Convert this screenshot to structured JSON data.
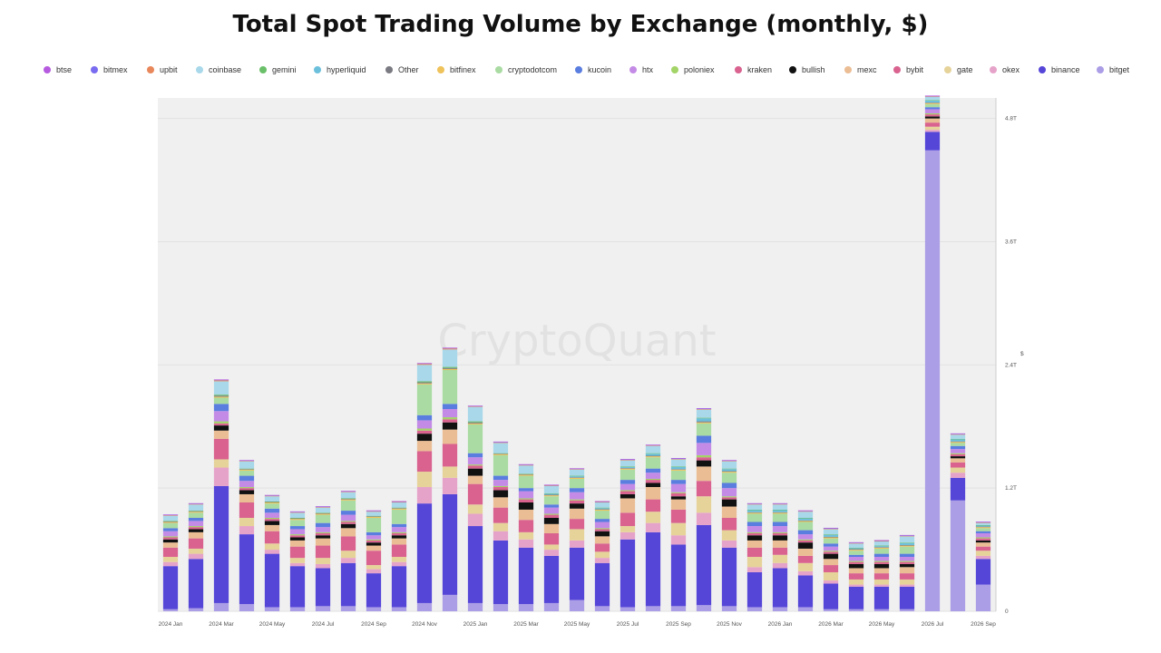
{
  "title": "Total Spot Trading Volume by Exchange (monthly, $)",
  "watermark": "CryptoQuant",
  "legend": [
    {
      "name": "btse",
      "color": "#b65be0"
    },
    {
      "name": "bitmex",
      "color": "#7a6cf0"
    },
    {
      "name": "upbit",
      "color": "#e8875a"
    },
    {
      "name": "coinbase",
      "color": "#a8d8ea"
    },
    {
      "name": "gemini",
      "color": "#6abf69"
    },
    {
      "name": "hyperliquid",
      "color": "#6cc0dc"
    },
    {
      "name": "Other",
      "color": "#7a7a82"
    },
    {
      "name": "bitfinex",
      "color": "#efc25a"
    },
    {
      "name": "cryptodotcom",
      "color": "#a9dba2"
    },
    {
      "name": "kucoin",
      "color": "#5a7de0"
    },
    {
      "name": "htx",
      "color": "#c48be6"
    },
    {
      "name": "poloniex",
      "color": "#a3d468"
    },
    {
      "name": "kraken",
      "color": "#d9628f"
    },
    {
      "name": "bullish",
      "color": "#111111"
    },
    {
      "name": "mexc",
      "color": "#ebbd94"
    },
    {
      "name": "bybit",
      "color": "#d9628f"
    },
    {
      "name": "gate",
      "color": "#e6d39a"
    },
    {
      "name": "okex",
      "color": "#e6a3c9"
    },
    {
      "name": "binance",
      "color": "#5546d8"
    },
    {
      "name": "bitget",
      "color": "#ab9de6"
    }
  ],
  "chart_data": {
    "type": "bar",
    "stacked": true,
    "title": "Total Spot Trading Volume by Exchange (monthly, $)",
    "ylabel": "$",
    "y_axis_position": "right",
    "ylim": [
      0,
      5000000000000
    ],
    "y_ticks": [
      0,
      1200000000000,
      2400000000000,
      3600000000000,
      4800000000000
    ],
    "y_tick_labels": [
      "0",
      "1.2T",
      "2.4T",
      "3.6T",
      "4.8T"
    ],
    "grid": true,
    "legend_position": "top",
    "categories": [
      "2024 Jan",
      "2024 Feb",
      "2024 Mar",
      "2024 Apr",
      "2024 May",
      "2024 Jun",
      "2024 Jul",
      "2024 Aug",
      "2024 Sep",
      "2024 Oct",
      "2024 Nov",
      "2024 Dec",
      "2025 Jan",
      "2025 Feb",
      "2025 Mar",
      "2025 Apr",
      "2025 May",
      "2025 Jun",
      "2025 Jul",
      "2025 Aug",
      "2025 Sep",
      "2025 Oct",
      "2025 Nov",
      "2025 Dec",
      "2026 Jan",
      "2026 Feb",
      "2026 Mar",
      "2026 Apr",
      "2026 May",
      "2026 Jun",
      "2026 Jul",
      "2026 Aug",
      "2026 Sep"
    ],
    "x_tick_labels": [
      "2024 Jan",
      "",
      "2024 Mar",
      "",
      "2024 May",
      "",
      "2024 Jul",
      "",
      "2024 Sep",
      "",
      "2024 Nov",
      "",
      "2025 Jan",
      "",
      "2025 Mar",
      "",
      "2025 May",
      "",
      "2025 Jul",
      "",
      "2025 Sep",
      "",
      "2025 Nov",
      "",
      "2026 Jan",
      "",
      "2026 Mar",
      "",
      "2026 May",
      "",
      "2026 Jul",
      "",
      "2026 Sep"
    ],
    "series": [
      {
        "name": "bitget",
        "color": "#ab9de6",
        "values": [
          0.02,
          0.03,
          0.08,
          0.07,
          0.04,
          0.04,
          0.05,
          0.05,
          0.04,
          0.04,
          0.08,
          0.16,
          0.08,
          0.07,
          0.07,
          0.08,
          0.11,
          0.05,
          0.04,
          0.05,
          0.05,
          0.06,
          0.05,
          0.04,
          0.04,
          0.04,
          0.02,
          0.02,
          0.02,
          0.02,
          4.49,
          1.08,
          0.26
        ]
      },
      {
        "name": "binance",
        "color": "#5546d8",
        "values": [
          0.42,
          0.48,
          1.14,
          0.68,
          0.52,
          0.4,
          0.37,
          0.42,
          0.33,
          0.4,
          0.97,
          0.98,
          0.75,
          0.62,
          0.55,
          0.46,
          0.51,
          0.42,
          0.66,
          0.72,
          0.6,
          0.78,
          0.57,
          0.34,
          0.38,
          0.31,
          0.25,
          0.22,
          0.22,
          0.22,
          0.18,
          0.22,
          0.25
        ]
      },
      {
        "name": "okex",
        "color": "#e6a3c9",
        "values": [
          0.04,
          0.05,
          0.18,
          0.08,
          0.04,
          0.03,
          0.04,
          0.05,
          0.04,
          0.04,
          0.16,
          0.16,
          0.12,
          0.09,
          0.08,
          0.06,
          0.07,
          0.05,
          0.07,
          0.09,
          0.09,
          0.12,
          0.07,
          0.05,
          0.05,
          0.04,
          0.03,
          0.02,
          0.02,
          0.02,
          0.02,
          0.05,
          0.03
        ]
      },
      {
        "name": "gate",
        "color": "#e6d39a",
        "values": [
          0.05,
          0.05,
          0.08,
          0.08,
          0.06,
          0.05,
          0.06,
          0.07,
          0.04,
          0.05,
          0.15,
          0.11,
          0.09,
          0.08,
          0.07,
          0.05,
          0.11,
          0.06,
          0.06,
          0.11,
          0.12,
          0.16,
          0.1,
          0.1,
          0.08,
          0.08,
          0.08,
          0.05,
          0.05,
          0.05,
          0.03,
          0.05,
          0.05
        ]
      },
      {
        "name": "bybit",
        "color": "#d9628f",
        "values": [
          0.09,
          0.1,
          0.2,
          0.15,
          0.12,
          0.11,
          0.12,
          0.14,
          0.14,
          0.12,
          0.2,
          0.22,
          0.2,
          0.15,
          0.12,
          0.11,
          0.1,
          0.08,
          0.13,
          0.12,
          0.13,
          0.15,
          0.12,
          0.09,
          0.07,
          0.07,
          0.07,
          0.06,
          0.06,
          0.06,
          0.04,
          0.05,
          0.04
        ]
      },
      {
        "name": "mexc",
        "color": "#ebbd94",
        "values": [
          0.05,
          0.06,
          0.08,
          0.08,
          0.06,
          0.06,
          0.07,
          0.08,
          0.05,
          0.06,
          0.1,
          0.14,
          0.08,
          0.1,
          0.1,
          0.09,
          0.1,
          0.07,
          0.14,
          0.12,
          0.1,
          0.14,
          0.11,
          0.07,
          0.07,
          0.07,
          0.06,
          0.05,
          0.05,
          0.06,
          0.04,
          0.04,
          0.04
        ]
      },
      {
        "name": "bullish",
        "color": "#111111",
        "values": [
          0.03,
          0.03,
          0.05,
          0.04,
          0.04,
          0.03,
          0.03,
          0.04,
          0.03,
          0.03,
          0.07,
          0.07,
          0.07,
          0.07,
          0.07,
          0.06,
          0.05,
          0.05,
          0.04,
          0.04,
          0.03,
          0.06,
          0.07,
          0.05,
          0.05,
          0.06,
          0.05,
          0.04,
          0.04,
          0.03,
          0.02,
          0.02,
          0.02
        ]
      },
      {
        "name": "kraken",
        "color": "#d9628f",
        "values": [
          0.02,
          0.02,
          0.02,
          0.02,
          0.02,
          0.02,
          0.02,
          0.02,
          0.02,
          0.02,
          0.03,
          0.03,
          0.03,
          0.03,
          0.03,
          0.03,
          0.03,
          0.02,
          0.03,
          0.03,
          0.03,
          0.03,
          0.02,
          0.02,
          0.02,
          0.02,
          0.02,
          0.02,
          0.02,
          0.02,
          0.02,
          0.02,
          0.02
        ]
      },
      {
        "name": "poloniex",
        "color": "#a3d468",
        "values": [
          0.01,
          0.01,
          0.02,
          0.01,
          0.01,
          0.01,
          0.01,
          0.01,
          0.01,
          0.01,
          0.02,
          0.02,
          0.01,
          0.01,
          0.01,
          0.01,
          0.01,
          0.01,
          0.01,
          0.01,
          0.01,
          0.02,
          0.01,
          0.01,
          0.01,
          0.01,
          0.01,
          0.01,
          0.01,
          0.01,
          0.01,
          0.01,
          0.01
        ]
      },
      {
        "name": "htx",
        "color": "#c48be6",
        "values": [
          0.05,
          0.05,
          0.1,
          0.06,
          0.05,
          0.05,
          0.05,
          0.06,
          0.04,
          0.05,
          0.08,
          0.08,
          0.07,
          0.06,
          0.07,
          0.06,
          0.07,
          0.06,
          0.06,
          0.06,
          0.08,
          0.12,
          0.08,
          0.06,
          0.06,
          0.05,
          0.04,
          0.04,
          0.04,
          0.04,
          0.04,
          0.04,
          0.04
        ]
      },
      {
        "name": "kucoin",
        "color": "#5a7de0",
        "values": [
          0.03,
          0.03,
          0.07,
          0.05,
          0.04,
          0.03,
          0.04,
          0.04,
          0.03,
          0.03,
          0.05,
          0.05,
          0.04,
          0.04,
          0.03,
          0.03,
          0.04,
          0.03,
          0.04,
          0.04,
          0.04,
          0.07,
          0.05,
          0.04,
          0.04,
          0.04,
          0.03,
          0.02,
          0.03,
          0.03,
          0.02,
          0.03,
          0.02
        ]
      },
      {
        "name": "cryptodotcom",
        "color": "#a9dba2",
        "values": [
          0.05,
          0.05,
          0.06,
          0.05,
          0.05,
          0.06,
          0.08,
          0.1,
          0.14,
          0.14,
          0.3,
          0.33,
          0.28,
          0.2,
          0.12,
          0.08,
          0.09,
          0.08,
          0.1,
          0.11,
          0.09,
          0.12,
          0.1,
          0.08,
          0.08,
          0.08,
          0.05,
          0.04,
          0.05,
          0.07,
          0.03,
          0.03,
          0.03
        ]
      },
      {
        "name": "bitfinex",
        "color": "#efc25a",
        "values": [
          0.01,
          0.01,
          0.01,
          0.01,
          0.01,
          0.01,
          0.01,
          0.01,
          0.01,
          0.01,
          0.01,
          0.01,
          0.01,
          0.01,
          0.01,
          0.01,
          0.01,
          0.01,
          0.01,
          0.01,
          0.01,
          0.01,
          0.01,
          0.01,
          0.01,
          0.01,
          0.01,
          0.01,
          0.01,
          0.01,
          0.01,
          0.01,
          0.01
        ]
      },
      {
        "name": "Other",
        "color": "#7a7a82",
        "values": [
          0.005,
          0.005,
          0.01,
          0.005,
          0.005,
          0.005,
          0.005,
          0.005,
          0.005,
          0.005,
          0.01,
          0.01,
          0.01,
          0.005,
          0.005,
          0.005,
          0.005,
          0.005,
          0.005,
          0.005,
          0.005,
          0.01,
          0.005,
          0.005,
          0.005,
          0.005,
          0.005,
          0.005,
          0.005,
          0.005,
          0.005,
          0.005,
          0.005
        ]
      },
      {
        "name": "hyperliquid",
        "color": "#6cc0dc",
        "values": [
          0,
          0,
          0,
          0,
          0,
          0,
          0,
          0,
          0,
          0,
          0,
          0,
          0,
          0,
          0,
          0.01,
          0.01,
          0.01,
          0.01,
          0.02,
          0.02,
          0.03,
          0.02,
          0.02,
          0.02,
          0.02,
          0.02,
          0.01,
          0.01,
          0.02,
          0.02,
          0.02,
          0.01
        ]
      },
      {
        "name": "gemini",
        "color": "#6abf69",
        "values": [
          0.005,
          0.005,
          0.01,
          0.005,
          0.005,
          0.005,
          0.005,
          0.005,
          0.005,
          0.005,
          0.01,
          0.01,
          0.01,
          0.005,
          0.005,
          0.005,
          0.005,
          0.005,
          0.005,
          0.005,
          0.005,
          0.005,
          0.005,
          0.005,
          0.005,
          0.005,
          0.005,
          0.005,
          0.005,
          0.005,
          0.005,
          0.005,
          0.005
        ]
      },
      {
        "name": "coinbase",
        "color": "#a8d8ea",
        "values": [
          0.05,
          0.06,
          0.13,
          0.07,
          0.05,
          0.05,
          0.05,
          0.06,
          0.04,
          0.05,
          0.16,
          0.17,
          0.14,
          0.1,
          0.08,
          0.07,
          0.06,
          0.05,
          0.06,
          0.07,
          0.07,
          0.08,
          0.07,
          0.05,
          0.05,
          0.06,
          0.05,
          0.04,
          0.04,
          0.06,
          0.03,
          0.04,
          0.02
        ]
      },
      {
        "name": "upbit",
        "color": "#e8875a",
        "values": [
          0.005,
          0.005,
          0.01,
          0.005,
          0.005,
          0.005,
          0.005,
          0.005,
          0.005,
          0.005,
          0.01,
          0.01,
          0.005,
          0.005,
          0.005,
          0.005,
          0.005,
          0.005,
          0.005,
          0.005,
          0.005,
          0.005,
          0.005,
          0.005,
          0.005,
          0.005,
          0.005,
          0.005,
          0.005,
          0.005,
          0.005,
          0.005,
          0.005
        ]
      },
      {
        "name": "bitmex",
        "color": "#7a6cf0",
        "values": [
          0.005,
          0.005,
          0.005,
          0.005,
          0.005,
          0.005,
          0.005,
          0.005,
          0.005,
          0.005,
          0.005,
          0.005,
          0.005,
          0.005,
          0.005,
          0.005,
          0.005,
          0.005,
          0.005,
          0.005,
          0.005,
          0.005,
          0.005,
          0.005,
          0.005,
          0.005,
          0.005,
          0.005,
          0.005,
          0.005,
          0.005,
          0.005,
          0.005
        ]
      },
      {
        "name": "btse",
        "color": "#b65be0",
        "values": [
          0.003,
          0.003,
          0.003,
          0.003,
          0.003,
          0.003,
          0.003,
          0.003,
          0.003,
          0.003,
          0.003,
          0.003,
          0.003,
          0.003,
          0.003,
          0.003,
          0.003,
          0.003,
          0.003,
          0.003,
          0.003,
          0.003,
          0.003,
          0.003,
          0.003,
          0.003,
          0.003,
          0.003,
          0.003,
          0.003,
          0.003,
          0.003,
          0.003
        ]
      }
    ],
    "value_unit_scale": 1000000000000
  }
}
